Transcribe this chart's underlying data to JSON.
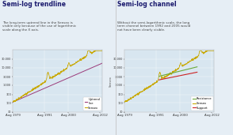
{
  "title_left": "Semi-log trendline",
  "title_right": "Semi-log channel",
  "subtitle_left": "The long-term uptrend line in the Sensex is\nvisible only because of the use of logarithmic\nscale along the X axis.",
  "subtitle_right": "Without the semi-logarithmic scale, the long\nterm channel between 1992 and 2005 would\nnot have been clearly visible.",
  "bg_color": "#e6eef5",
  "chart_bg": "#d8e6f0",
  "title_color": "#1a1a6e",
  "subtitle_color": "#444444",
  "sensex_color": "#c8a800",
  "trendline_color": "#9b3a7a",
  "resistance_color": "#6aaa3a",
  "support_color": "#cc2222",
  "divider_color": "#bbbbbb",
  "yticks_log": [
    30,
    100,
    300,
    1000,
    3000,
    10000,
    30000
  ],
  "ytick_labels_log": [
    "30",
    "100",
    "300",
    "1,000",
    "3,000",
    "10,000",
    "30,000"
  ],
  "xtick_years": [
    1979,
    1991,
    2000,
    2012
  ],
  "xtick_labels": [
    "Aug 1979",
    "Aug 1991",
    "Aug 2000",
    "Aug 2012"
  ]
}
